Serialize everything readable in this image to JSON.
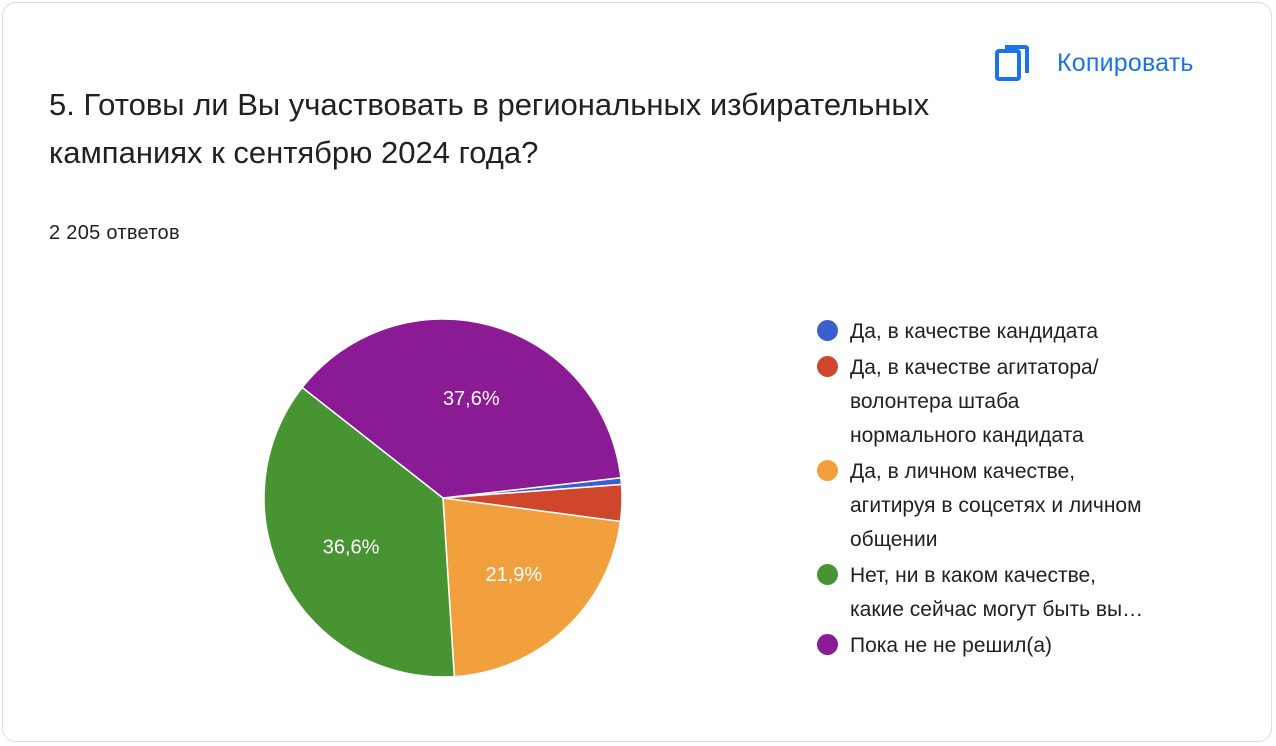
{
  "header": {
    "copy_label": "Копировать",
    "copy_icon": "copy-icon"
  },
  "question": {
    "title": "5. Готовы ли Вы участвовать в региональных избирательных кампаниях к сентябрю 2024 года?",
    "response_count": "2 205 ответов"
  },
  "colors": {
    "accent": "#1a73e8",
    "blue": "#3b5fcf",
    "red": "#d0462c",
    "orange": "#f2a03d",
    "green": "#489432",
    "purple": "#8b1a95"
  },
  "chart_data": {
    "type": "pie",
    "title": "5. Готовы ли Вы участвовать в региональных избирательных кампаниях к сентябрю 2024 года?",
    "total_responses": 2205,
    "slices": [
      {
        "name": "Да, в качестве кандидата",
        "legend": "Да, в качестве кандидата",
        "value": 0.6,
        "label": "",
        "color": "#3b5fcf"
      },
      {
        "name": "Да, в качестве агитатора/ волонтера штаба нормального кандидата",
        "legend": "Да, в качестве агитатора/\nволонтера штаба\nнормального кандидата",
        "value": 3.3,
        "label": "",
        "color": "#d0462c"
      },
      {
        "name": "Да, в личном качестве, агитируя в соцсетях и личном общении",
        "legend": "Да, в личном качестве,\nагитируя в соцсетях и личном\nобщении",
        "value": 21.9,
        "label": "21,9%",
        "color": "#f2a03d"
      },
      {
        "name": "Нет, ни в каком качестве, какие сейчас могут быть вы…",
        "legend": "Нет, ни в каком качестве,\nкакие сейчас могут быть вы…",
        "value": 36.6,
        "label": "36,6%",
        "color": "#489432"
      },
      {
        "name": "Пока не не решил(а)",
        "legend": "Пока не не решил(а)",
        "value": 37.6,
        "label": "37,6%",
        "color": "#8b1a95"
      }
    ],
    "legend_position": "right"
  }
}
